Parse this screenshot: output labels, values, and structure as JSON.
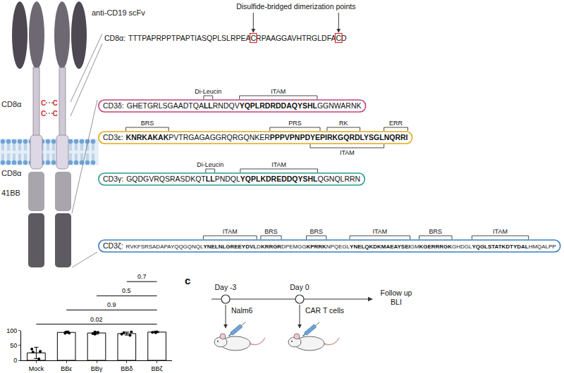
{
  "diagram": {
    "scfv_label": "anti-CD19 scFv",
    "hinge_label": "CD8α",
    "transmembrane_label": "CD8α",
    "costimulatory_label": "41BB",
    "dimerization_residue": "C",
    "dimerization_note": "Disulfide-bridged dimerization points",
    "hinge_sequence": {
      "label": "CD8α:",
      "segments": [
        {
          "text": "TTTPAPRPPTPAPTIASQPLSLRPEA"
        },
        {
          "text": "C",
          "boxed": true
        },
        {
          "text": "RPAAGGAVHTRGLDFA"
        },
        {
          "text": "C",
          "boxed": true
        },
        {
          "text": "D"
        }
      ]
    },
    "signaling_domains": [
      {
        "label": "CD3δ:",
        "color": "#c2417f",
        "segments": [
          {
            "text": "GHETGRLSGAADTQA"
          },
          {
            "text": "LL",
            "bold": true
          },
          {
            "text": "RNDQV"
          },
          {
            "text": "YQPLRDRDDAQYSHL",
            "bold": true
          },
          {
            "text": "GGNWARNK"
          }
        ],
        "above": [
          "Di-Leucin",
          "ITAM"
        ],
        "below": []
      },
      {
        "label": "CD3ε:",
        "color": "#e0a81c",
        "segments": [
          {
            "text": "KNRKAKAK",
            "bold": true
          },
          {
            "text": "PVTRGAGAGGRQRGQNKER"
          },
          {
            "text": "PPPVPNPDYEPIRKGQRDLYSGLNQRRI",
            "bold": true
          }
        ],
        "above": [
          "BRS",
          "PRS",
          "RK",
          "ERR"
        ],
        "below": [
          "ITAM"
        ]
      },
      {
        "label": "CD3γ:",
        "color": "#2a9d8f",
        "segments": [
          {
            "text": "GQDGVRQSRASDKQT"
          },
          {
            "text": "LL",
            "bold": true
          },
          {
            "text": "PNDQL"
          },
          {
            "text": "YQPLKDREDDQYSHL",
            "bold": true
          },
          {
            "text": "QGNQLRRN"
          }
        ],
        "above": [
          "Di-Leucin",
          "ITAM"
        ],
        "below": []
      },
      {
        "label": "CD3ζ:",
        "color": "#3a7fc0",
        "segments": [
          {
            "text": "RVKFSRSADAPAYQQGQNQL"
          },
          {
            "text": "YNELNLGREEYDVL",
            "bold": true
          },
          {
            "text": "D"
          },
          {
            "text": "KRRGR",
            "bold": true
          },
          {
            "text": "DPEMGG"
          },
          {
            "text": "KPRRK",
            "bold": true
          },
          {
            "text": "NPQEGL"
          },
          {
            "text": "YNELQKDKMAEAYSEI",
            "bold": true
          },
          {
            "text": "GM"
          },
          {
            "text": "KGERRRGK",
            "bold": true
          },
          {
            "text": "GHDGL"
          },
          {
            "text": "YQGLSTATKDTYDAL",
            "bold": true
          },
          {
            "text": "HMQALPP"
          }
        ],
        "above": [
          "ITAM",
          "BRS",
          "BRS",
          "ITAM",
          "BRS",
          "ITAM"
        ],
        "below": []
      }
    ]
  },
  "chart_data": {
    "type": "bar",
    "categories": [
      "Mock",
      "BBε",
      "BBγ",
      "BBδ",
      "BBζ"
    ],
    "values": [
      25,
      94,
      92,
      90,
      95
    ],
    "error": [
      19,
      3,
      4,
      5,
      2
    ],
    "points": [
      [
        38,
        30,
        28,
        5
      ],
      [
        97,
        95,
        92,
        91
      ],
      [
        96,
        94,
        90,
        88
      ],
      [
        96,
        93,
        88,
        84
      ],
      [
        97,
        96,
        94,
        93
      ]
    ],
    "color": "#ffffff",
    "ylim": [
      0,
      100
    ],
    "yticks": [
      0,
      50,
      100
    ],
    "grid": false,
    "comparisons": [
      {
        "groups": [
          "Mock",
          "BBζ"
        ],
        "p": 0.02
      },
      {
        "groups": [
          "BBε",
          "BBζ"
        ],
        "p": 0.9
      },
      {
        "groups": [
          "BBγ",
          "BBζ"
        ],
        "p": 0.5
      },
      {
        "groups": [
          "BBδ",
          "BBζ"
        ],
        "p": 0.7
      }
    ]
  },
  "schematic": {
    "panel": "c",
    "steps": [
      {
        "day": "Day -3",
        "event": "Nalm6"
      },
      {
        "day": "Day 0",
        "event": "CAR T cells"
      },
      {
        "day": "Follow up",
        "event": "BLI"
      }
    ]
  }
}
